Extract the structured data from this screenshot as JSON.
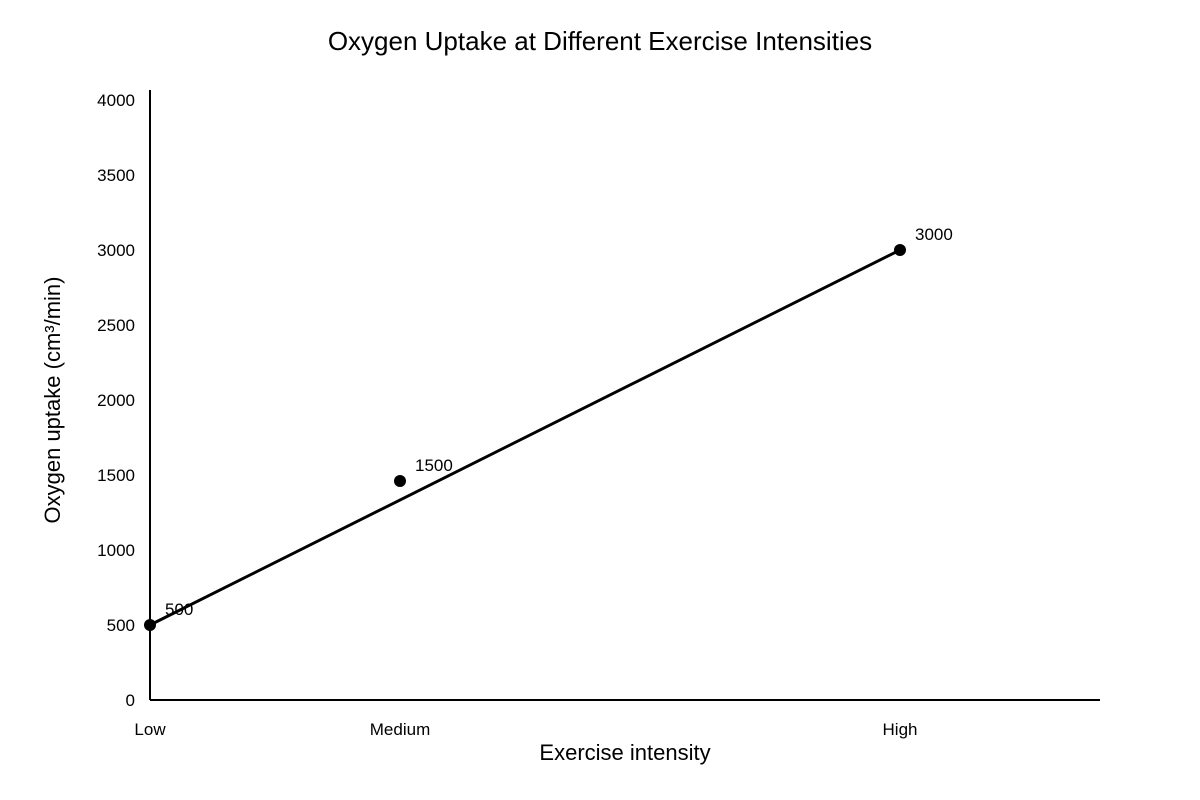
{
  "chart_data": {
    "type": "line",
    "title": "Oxygen Uptake at Different Exercise Intensities",
    "xlabel": "Exercise intensity",
    "ylabel": "Oxygen uptake (cm³/min)",
    "ylim": [
      0,
      4000
    ],
    "yticks": [
      0,
      500,
      1000,
      1500,
      2000,
      2500,
      3000,
      3500,
      4000
    ],
    "grid": false,
    "x_ticks": [
      {
        "label": "Low",
        "value": 0
      },
      {
        "label": "Medium",
        "value": 1
      },
      {
        "label": "High",
        "value": 3
      }
    ],
    "xlim": [
      0,
      3.8
    ],
    "points": [
      {
        "x": 0,
        "y": 500,
        "label": "500"
      },
      {
        "x": 1,
        "y": 1460,
        "label": "1500"
      },
      {
        "x": 3,
        "y": 3000,
        "label": "3000"
      }
    ],
    "trend_line": {
      "from": {
        "x": 0,
        "y": 500
      },
      "to": {
        "x": 3,
        "y": 3000
      }
    },
    "colors": {
      "line": "#000000",
      "points": "#000000",
      "text": "#000000"
    }
  }
}
